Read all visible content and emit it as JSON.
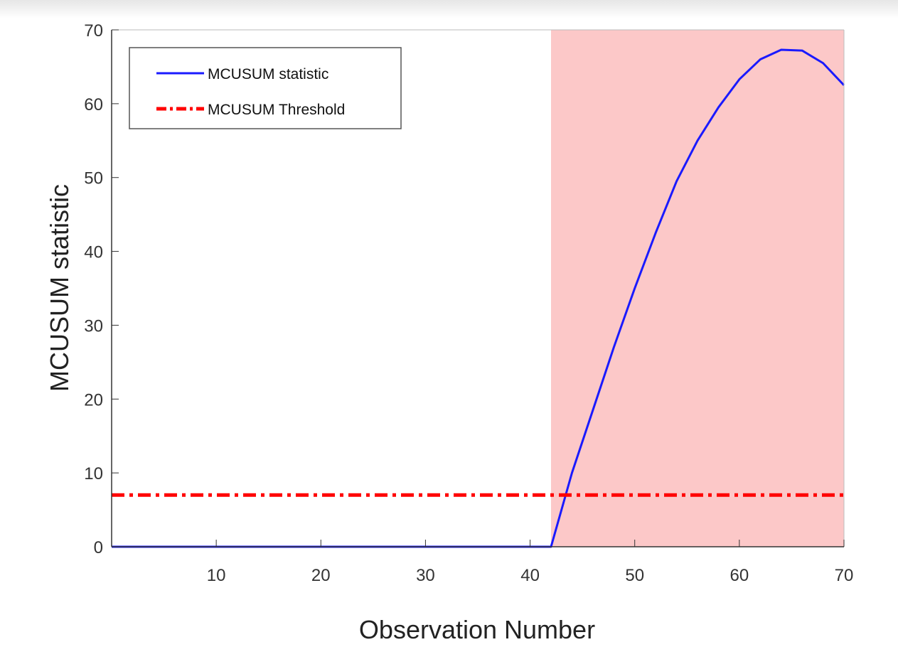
{
  "chart_data": {
    "type": "line",
    "title": "",
    "xlabel": "Observation Number",
    "ylabel": "MCUSUM statistic",
    "xlim": [
      0,
      70
    ],
    "ylim": [
      0,
      70
    ],
    "xticks": [
      10,
      20,
      30,
      40,
      50,
      60,
      70
    ],
    "yticks": [
      0,
      10,
      20,
      30,
      40,
      50,
      60,
      70
    ],
    "grid": false,
    "legend_position": "top-left",
    "shaded_region": {
      "x_start": 42,
      "x_end": 70,
      "color": "#fcc8c8"
    },
    "series": [
      {
        "name": "MCUSUM statistic",
        "color": "#1a1aff",
        "style": "solid",
        "x": [
          0,
          42,
          44,
          46,
          48,
          50,
          52,
          54,
          56,
          58,
          60,
          62,
          64,
          66,
          68,
          70
        ],
        "y": [
          0,
          0,
          10,
          18.5,
          27,
          35,
          42.5,
          49.5,
          55,
          59.5,
          63.3,
          66,
          67.3,
          67.2,
          65.5,
          62.5
        ]
      },
      {
        "name": "MCUSUM Threshold",
        "color": "#ff0000",
        "style": "dashdot",
        "x": [
          0,
          70
        ],
        "y": [
          7,
          7
        ]
      }
    ]
  }
}
